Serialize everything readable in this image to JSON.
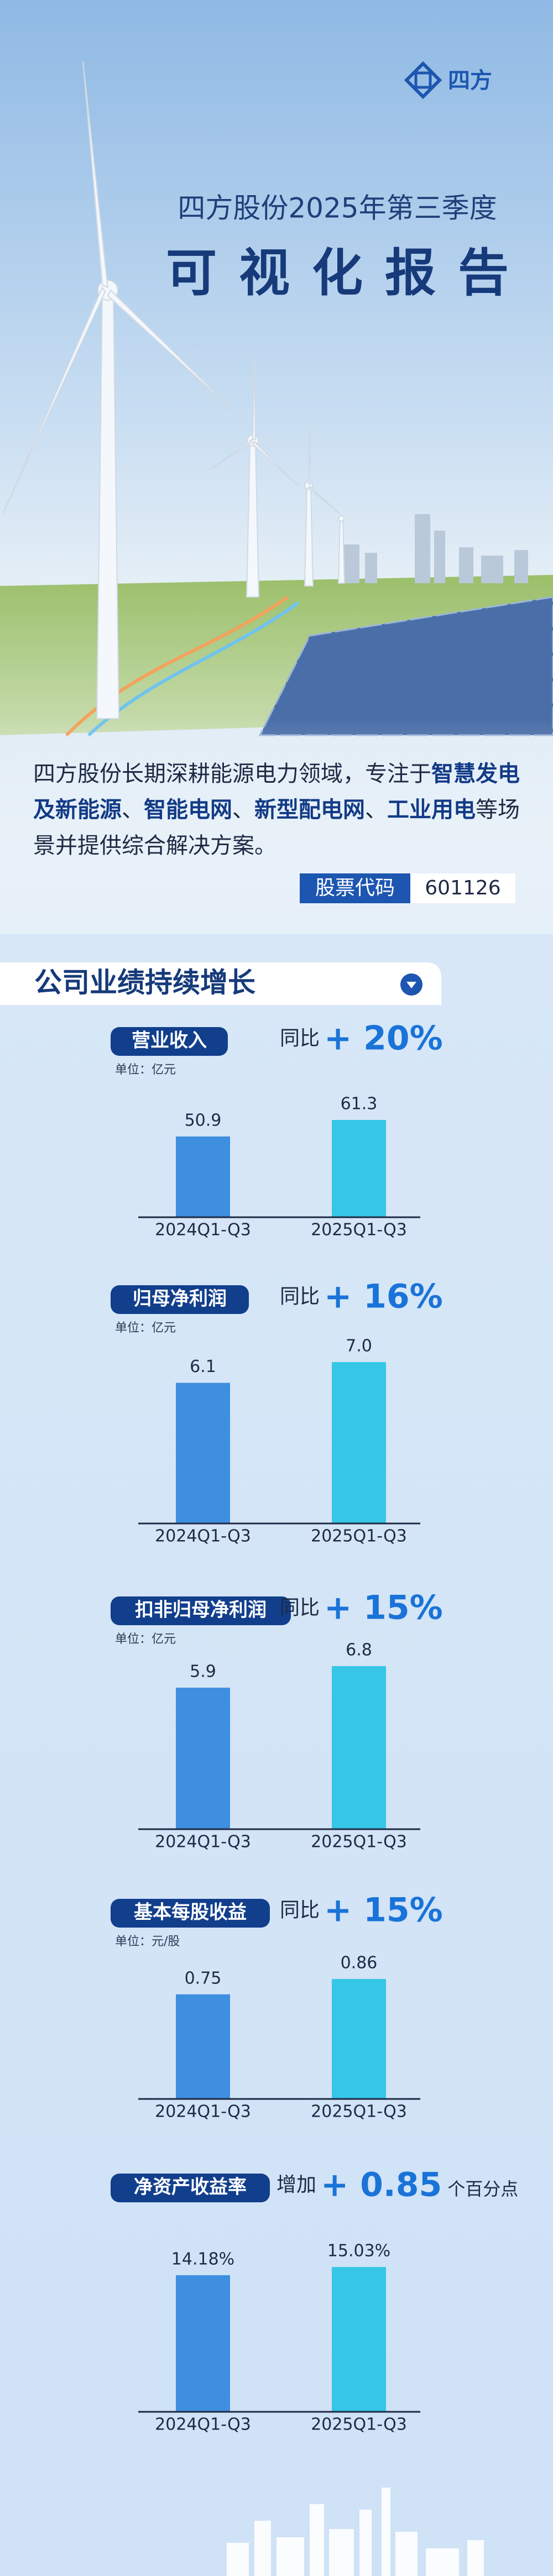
{
  "header": {
    "logo": "四方",
    "title": "四方股份2025年第三季度",
    "subtitle": "可视化报告"
  },
  "intro": {
    "parts": [
      {
        "text": "四方股份长期深耕能源电力领域，专注于",
        "bold": false
      },
      {
        "text": "智慧发电及新能源",
        "bold": true
      },
      {
        "text": "、",
        "bold": false
      },
      {
        "text": "智能电网",
        "bold": true
      },
      {
        "text": "、",
        "bold": false
      },
      {
        "text": "新型配电网",
        "bold": true
      },
      {
        "text": "、",
        "bold": false
      },
      {
        "text": "工业用电",
        "bold": true
      },
      {
        "text": "等场景并提供综合解决方案。",
        "bold": false
      }
    ]
  },
  "stock": {
    "label": "股票代码",
    "code": "601126"
  },
  "section_title": "公司业绩持续增长",
  "metrics": [
    {
      "label": "营业收入",
      "unit": "单位：亿元",
      "compare": "同比",
      "change": "+ 20%",
      "categories": [
        "2024Q1-Q3",
        "2025Q1-Q3"
      ],
      "values": [
        50.9,
        61.3
      ]
    },
    {
      "label": "归母净利润",
      "unit": "单位：亿元",
      "compare": "同比",
      "change": "+ 16%",
      "categories": [
        "2024Q1-Q3",
        "2025Q1-Q3"
      ],
      "values": [
        6.1,
        7.0
      ],
      "value_labels": [
        "6.1",
        "7.0"
      ]
    },
    {
      "label": "扣非归母净利润",
      "unit": "单位：亿元",
      "compare": "同比",
      "change": "+ 15%",
      "categories": [
        "2024Q1-Q3",
        "2025Q1-Q3"
      ],
      "values": [
        5.9,
        6.8
      ]
    },
    {
      "label": "基本每股收益",
      "unit": "单位：元/股",
      "compare": "同比",
      "change": "+ 15%",
      "categories": [
        "2024Q1-Q3",
        "2025Q1-Q3"
      ],
      "values": [
        0.75,
        0.86
      ]
    },
    {
      "label": "净资产收益率",
      "compare": "增加",
      "change": "+ 0.85",
      "suffix": "个百分点",
      "categories": [
        "2024Q1-Q3",
        "2025Q1-Q3"
      ],
      "values": [
        14.18,
        15.03
      ],
      "value_labels": [
        "14.18%",
        "15.03%"
      ]
    }
  ],
  "colors": [
    "#3f8fe0",
    "#36c6e6"
  ]
}
